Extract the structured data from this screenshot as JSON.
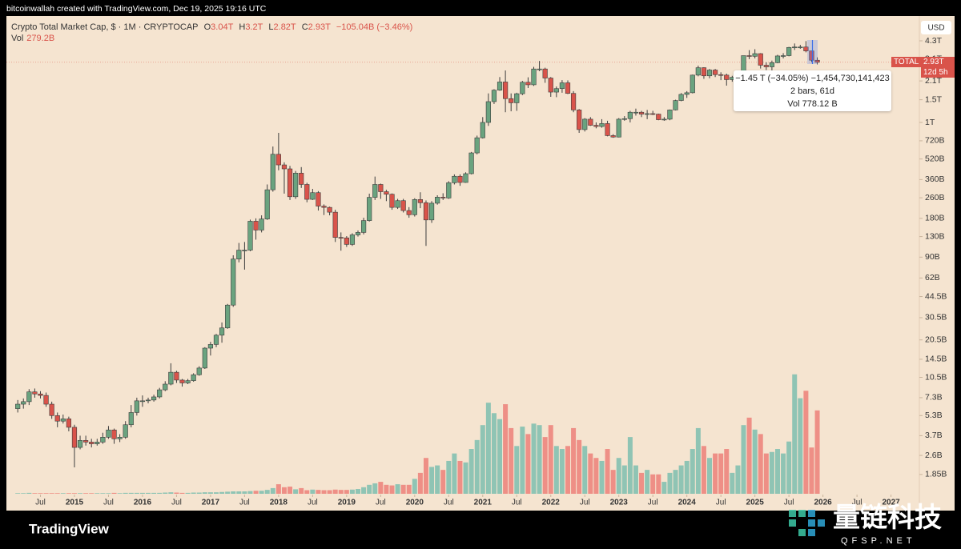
{
  "chart_data": {
    "type": "candlestick",
    "top_bar": "bitcoinwallah created with TradingView.com, Dec 19, 2025 19:16 UTC",
    "title": "Crypto Total Market Cap, $ · 1M · CRYPTOCAP",
    "header": {
      "ohlc": [
        {
          "label": "O",
          "value": "3.04T"
        },
        {
          "label": "H",
          "value": "3.2T"
        },
        {
          "label": "L",
          "value": "2.82T"
        },
        {
          "label": "C",
          "value": "2.93T"
        }
      ],
      "change": "−105.04B (−3.46%)",
      "vol_label": "Vol",
      "vol_value": "279.2B"
    },
    "currency": "USD",
    "price_tag": {
      "symbol": "TOTAL",
      "value": "2.93T",
      "countdown": "12d 5h"
    },
    "tooltip": [
      "−1.45 T (−34.05%) −1,454,730,141,423",
      "2 bars, 61d",
      "Vol 778.12 B"
    ],
    "footer": "TradingView",
    "watermark": {
      "name": "量链科技",
      "site": "QFSP.NET"
    },
    "log_scale": true,
    "colors": {
      "background": "#f5e4d0",
      "up": "#6aa37f",
      "down": "#d9534a",
      "volume_up": "#8fc4b4",
      "volume_down": "#ee8f86"
    },
    "x": [
      "2014-03",
      "2014-04",
      "2014-05",
      "2014-06",
      "2014-07",
      "2014-08",
      "2014-09",
      "2014-10",
      "2014-11",
      "2014-12",
      "2015-01",
      "2015-02",
      "2015-03",
      "2015-04",
      "2015-05",
      "2015-06",
      "2015-07",
      "2015-08",
      "2015-09",
      "2015-10",
      "2015-11",
      "2015-12",
      "2016-01",
      "2016-02",
      "2016-03",
      "2016-04",
      "2016-05",
      "2016-06",
      "2016-07",
      "2016-08",
      "2016-09",
      "2016-10",
      "2016-11",
      "2016-12",
      "2017-01",
      "2017-02",
      "2017-03",
      "2017-04",
      "2017-05",
      "2017-06",
      "2017-07",
      "2017-08",
      "2017-09",
      "2017-10",
      "2017-11",
      "2017-12",
      "2018-01",
      "2018-02",
      "2018-03",
      "2018-04",
      "2018-05",
      "2018-06",
      "2018-07",
      "2018-08",
      "2018-09",
      "2018-10",
      "2018-11",
      "2018-12",
      "2019-01",
      "2019-02",
      "2019-03",
      "2019-04",
      "2019-05",
      "2019-06",
      "2019-07",
      "2019-08",
      "2019-09",
      "2019-10",
      "2019-11",
      "2019-12",
      "2020-01",
      "2020-02",
      "2020-03",
      "2020-04",
      "2020-05",
      "2020-06",
      "2020-07",
      "2020-08",
      "2020-09",
      "2020-10",
      "2020-11",
      "2020-12",
      "2021-01",
      "2021-02",
      "2021-03",
      "2021-04",
      "2021-05",
      "2021-06",
      "2021-07",
      "2021-08",
      "2021-09",
      "2021-10",
      "2021-11",
      "2021-12",
      "2022-01",
      "2022-02",
      "2022-03",
      "2022-04",
      "2022-05",
      "2022-06",
      "2022-07",
      "2022-08",
      "2022-09",
      "2022-10",
      "2022-11",
      "2022-12",
      "2023-01",
      "2023-02",
      "2023-03",
      "2023-04",
      "2023-05",
      "2023-06",
      "2023-07",
      "2023-08",
      "2023-09",
      "2023-10",
      "2023-11",
      "2023-12",
      "2024-01",
      "2024-02",
      "2024-03",
      "2024-04",
      "2024-05",
      "2024-06",
      "2024-07",
      "2024-08",
      "2024-09",
      "2024-10",
      "2024-11",
      "2024-12",
      "2025-01",
      "2025-02",
      "2025-03",
      "2025-04",
      "2025-05",
      "2025-06",
      "2025-07",
      "2025-08",
      "2025-09",
      "2025-10",
      "2025-11",
      "2025-12"
    ],
    "open": [
      6.0,
      6.5,
      6.8,
      8.1,
      7.8,
      7.6,
      6.5,
      5.3,
      4.8,
      5.0,
      4.3,
      3.0,
      3.4,
      3.3,
      3.2,
      3.3,
      3.6,
      4.1,
      3.5,
      3.6,
      4.5,
      5.6,
      6.9,
      6.9,
      7.0,
      7.4,
      8.4,
      9.3,
      11.5,
      10.0,
      9.5,
      9.9,
      11.0,
      12.4,
      17.7,
      18.9,
      22.3,
      25.4,
      38.2,
      87,
      102,
      102,
      171,
      146,
      178,
      300,
      566,
      468,
      436,
      265,
      404,
      330,
      253,
      285,
      224,
      219,
      201,
      128,
      127,
      113,
      134,
      140,
      173,
      262,
      330,
      290,
      277,
      219,
      247,
      207,
      192,
      252,
      238,
      175,
      236,
      263,
      259,
      340,
      382,
      342,
      400,
      580,
      760,
      1000,
      1450,
      1780,
      2060,
      1530,
      1420,
      1670,
      2050,
      1960,
      2600,
      2600,
      2210,
      1720,
      1830,
      2030,
      1680,
      1250,
      880,
      1060,
      950,
      930,
      980,
      790,
      770,
      1060,
      1070,
      1200,
      1200,
      1160,
      1170,
      1160,
      1050,
      1060,
      1250,
      1480,
      1650,
      1700,
      2330,
      2660,
      2300,
      2550,
      2350,
      2330,
      2150,
      2240,
      2330,
      3300,
      3260,
      3420,
      2780,
      2700,
      2910,
      3280,
      3300,
      3820,
      3850,
      3850,
      3590,
      3040
    ],
    "high": [
      7.0,
      7.2,
      8.5,
      8.6,
      8.2,
      8.0,
      6.8,
      5.6,
      5.4,
      5.2,
      4.5,
      3.7,
      3.7,
      3.5,
      3.5,
      3.9,
      4.4,
      4.2,
      3.8,
      4.8,
      6.4,
      7.3,
      7.6,
      7.3,
      7.7,
      8.7,
      9.8,
      13.5,
      11.8,
      10.2,
      10.2,
      11.3,
      12.8,
      18.0,
      19.8,
      22.8,
      28.0,
      39.0,
      93,
      116,
      118,
      176,
      180,
      190,
      330,
      650,
      830,
      490,
      460,
      420,
      450,
      340,
      305,
      293,
      231,
      222,
      210,
      140,
      131,
      138,
      145,
      182,
      280,
      380,
      335,
      300,
      281,
      255,
      255,
      220,
      258,
      287,
      248,
      245,
      272,
      282,
      350,
      395,
      395,
      410,
      590,
      790,
      1100,
      1680,
      1810,
      2250,
      2530,
      1680,
      1700,
      2100,
      2240,
      2700,
      3000,
      2660,
      2250,
      1900,
      2130,
      2120,
      1750,
      1270,
      1080,
      1100,
      1000,
      1060,
      1030,
      810,
      1080,
      1120,
      1230,
      1280,
      1230,
      1250,
      1230,
      1170,
      1100,
      1260,
      1500,
      1690,
      1750,
      2350,
      2760,
      2680,
      2600,
      2600,
      2450,
      2390,
      2300,
      2450,
      3300,
      3640,
      3700,
      3450,
      2930,
      3020,
      3350,
      3450,
      3860,
      4100,
      4000,
      4280,
      3570,
      3200
    ],
    "low": [
      5.6,
      6.0,
      6.4,
      7.3,
      7.2,
      6.2,
      5.0,
      4.3,
      4.6,
      4.0,
      2.1,
      2.9,
      3.1,
      3.0,
      3.1,
      3.2,
      3.5,
      3.2,
      3.3,
      3.5,
      4.3,
      5.3,
      6.2,
      6.6,
      6.8,
      7.2,
      8.2,
      9.1,
      9.5,
      8.9,
      9.3,
      9.7,
      10.8,
      12.2,
      15.5,
      18.0,
      19.5,
      25.0,
      37,
      82,
      72,
      100,
      123,
      140,
      175,
      290,
      425,
      280,
      250,
      255,
      310,
      240,
      250,
      207,
      191,
      190,
      118,
      101,
      108,
      110,
      130,
      135,
      170,
      250,
      255,
      245,
      210,
      213,
      200,
      182,
      186,
      216,
      110,
      166,
      230,
      250,
      255,
      330,
      322,
      340,
      395,
      565,
      750,
      940,
      1390,
      1760,
      1200,
      1220,
      1230,
      1630,
      1850,
      1920,
      2500,
      2030,
      1580,
      1570,
      1700,
      1660,
      1200,
      830,
      850,
      940,
      900,
      910,
      780,
      760,
      765,
      1030,
      1000,
      1130,
      1100,
      1060,
      1140,
      1040,
      1030,
      1040,
      1240,
      1460,
      1550,
      1680,
      2280,
      2180,
      2200,
      2250,
      2130,
      1930,
      2070,
      2170,
      2300,
      3100,
      3140,
      2620,
      2550,
      2450,
      2880,
      3140,
      3260,
      3650,
      3730,
      3500,
      2950,
      2820
    ],
    "close": [
      6.5,
      6.8,
      8.1,
      7.8,
      7.6,
      6.5,
      5.3,
      4.8,
      5.0,
      4.3,
      3.0,
      3.4,
      3.3,
      3.2,
      3.3,
      3.6,
      4.1,
      3.5,
      3.6,
      4.5,
      5.6,
      6.9,
      6.9,
      7.0,
      7.4,
      8.4,
      9.3,
      11.5,
      10.0,
      9.5,
      9.9,
      11.0,
      12.4,
      17.7,
      18.9,
      22.3,
      25.4,
      38.2,
      87,
      102,
      102,
      171,
      146,
      178,
      300,
      566,
      468,
      436,
      265,
      404,
      330,
      253,
      285,
      224,
      219,
      201,
      128,
      127,
      113,
      134,
      140,
      173,
      262,
      330,
      290,
      277,
      219,
      247,
      207,
      192,
      252,
      238,
      175,
      236,
      263,
      259,
      340,
      382,
      342,
      400,
      580,
      760,
      1000,
      1450,
      1780,
      2060,
      1530,
      1420,
      1670,
      2050,
      1960,
      2600,
      2600,
      2210,
      1720,
      1830,
      2030,
      1680,
      1250,
      880,
      1060,
      950,
      930,
      980,
      790,
      770,
      1060,
      1070,
      1200,
      1200,
      1160,
      1170,
      1160,
      1050,
      1060,
      1250,
      1480,
      1650,
      1700,
      2330,
      2660,
      2300,
      2550,
      2350,
      2330,
      2150,
      2240,
      2330,
      3300,
      3260,
      3420,
      2780,
      2700,
      2910,
      3280,
      3300,
      3820,
      3850,
      3850,
      3590,
      3040,
      2930
    ],
    "volume": {
      "name": "Vol",
      "axis": "y2",
      "values": [
        2,
        2,
        3,
        2,
        2,
        2,
        2,
        2,
        2,
        2,
        2,
        2,
        2,
        2,
        2,
        2,
        2,
        3,
        2,
        3,
        3,
        3,
        3,
        3,
        3,
        3,
        4,
        5,
        4,
        3,
        3,
        4,
        4,
        5,
        5,
        5,
        6,
        7,
        8,
        8,
        8,
        9,
        10,
        10,
        13,
        19,
        32,
        22,
        24,
        15,
        19,
        12,
        14,
        13,
        12,
        12,
        14,
        13,
        13,
        14,
        16,
        22,
        30,
        35,
        40,
        30,
        28,
        32,
        30,
        30,
        50,
        70,
        120,
        90,
        95,
        80,
        110,
        135,
        110,
        105,
        150,
        180,
        230,
        305,
        270,
        250,
        300,
        220,
        160,
        225,
        200,
        235,
        230,
        190,
        230,
        160,
        150,
        160,
        220,
        180,
        160,
        135,
        120,
        110,
        150,
        80,
        120,
        95,
        190,
        95,
        70,
        80,
        65,
        65,
        40,
        70,
        80,
        95,
        110,
        150,
        220,
        160,
        120,
        135,
        135,
        150,
        70,
        95,
        230,
        255,
        215,
        200,
        135,
        140,
        150,
        135,
        175,
        400,
        320,
        345,
        155,
        279.2
      ]
    },
    "ylim": [
      1.31,
      6700
    ],
    "yticks": [
      {
        "value": 4300,
        "label": "4.3T"
      },
      {
        "value": 3100,
        "label": "3.1T"
      },
      {
        "value": 2100,
        "label": "2.1T"
      },
      {
        "value": 1500,
        "label": "1.5T"
      },
      {
        "value": 1000,
        "label": "1T"
      },
      {
        "value": 720,
        "label": "720B"
      },
      {
        "value": 520,
        "label": "520B"
      },
      {
        "value": 360,
        "label": "360B"
      },
      {
        "value": 260,
        "label": "260B"
      },
      {
        "value": 180,
        "label": "180B"
      },
      {
        "value": 130,
        "label": "130B"
      },
      {
        "value": 90,
        "label": "90B"
      },
      {
        "value": 62,
        "label": "62B"
      },
      {
        "value": 44.5,
        "label": "44.5B"
      },
      {
        "value": 30.5,
        "label": "30.5B"
      },
      {
        "value": 20.5,
        "label": "20.5B"
      },
      {
        "value": 14.5,
        "label": "14.5B"
      },
      {
        "value": 10.5,
        "label": "10.5B"
      },
      {
        "value": 7.3,
        "label": "7.3B"
      },
      {
        "value": 5.3,
        "label": "5.3B"
      },
      {
        "value": 3.7,
        "label": "3.7B"
      },
      {
        "value": 2.6,
        "label": "2.6B"
      },
      {
        "value": 1.85,
        "label": "1.85B"
      }
    ],
    "y2lim": [
      0,
      1600
    ],
    "xlim": [
      "2014-01",
      "2027-06"
    ],
    "xticks": [
      {
        "value": "2014-07",
        "label": "Jul"
      },
      {
        "value": "2015-01",
        "label": "2015"
      },
      {
        "value": "2015-07",
        "label": "Jul"
      },
      {
        "value": "2016-01",
        "label": "2016"
      },
      {
        "value": "2016-07",
        "label": "Jul"
      },
      {
        "value": "2017-01",
        "label": "2017"
      },
      {
        "value": "2017-07",
        "label": "Jul"
      },
      {
        "value": "2018-01",
        "label": "2018"
      },
      {
        "value": "2018-07",
        "label": "Jul"
      },
      {
        "value": "2019-01",
        "label": "2019"
      },
      {
        "value": "2019-07",
        "label": "Jul"
      },
      {
        "value": "2020-01",
        "label": "2020"
      },
      {
        "value": "2020-07",
        "label": "Jul"
      },
      {
        "value": "2021-01",
        "label": "2021"
      },
      {
        "value": "2021-07",
        "label": "Jul"
      },
      {
        "value": "2022-01",
        "label": "2022"
      },
      {
        "value": "2022-07",
        "label": "Jul"
      },
      {
        "value": "2023-01",
        "label": "2023"
      },
      {
        "value": "2023-07",
        "label": "Jul"
      },
      {
        "value": "2024-01",
        "label": "2024"
      },
      {
        "value": "2024-07",
        "label": "Jul"
      },
      {
        "value": "2025-01",
        "label": "2025"
      },
      {
        "value": "2025-07",
        "label": "Jul"
      },
      {
        "value": "2026-01",
        "label": "2026"
      },
      {
        "value": "2026-07",
        "label": "Jul"
      },
      {
        "value": "2027-01",
        "label": "2027"
      }
    ]
  }
}
